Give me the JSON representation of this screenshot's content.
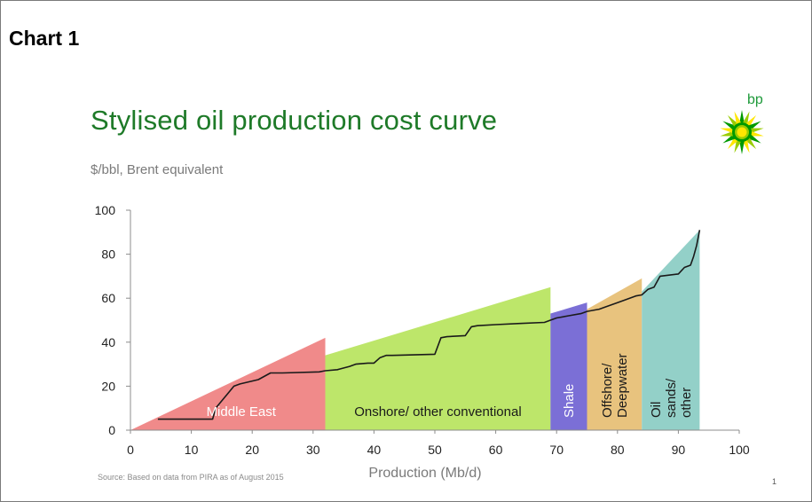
{
  "heading": "Chart 1",
  "logo": {
    "text": "bp",
    "icon": "bp-helios-icon",
    "colors": [
      "#009900",
      "#99cc00",
      "#ffe600"
    ]
  },
  "source": "Source: Based on data from PIRA as of August 2015",
  "page_number": "1",
  "chart_data": {
    "type": "area",
    "title": "Stylised oil production cost curve",
    "subtitle": "$/bbl, Brent equivalent",
    "xlabel": "Production (Mb/d)",
    "ylabel": "",
    "xlim": [
      0,
      100
    ],
    "ylim": [
      0,
      100
    ],
    "xticks": [
      0,
      10,
      20,
      30,
      40,
      50,
      60,
      70,
      80,
      90,
      100
    ],
    "yticks": [
      0,
      20,
      40,
      60,
      80,
      100
    ],
    "grid": false,
    "legend": "none",
    "regions": [
      {
        "name": "Middle East",
        "x_start": 0,
        "x_end": 32,
        "y_start_top": 0,
        "y_end_top": 42,
        "color": "#f08a8a",
        "label_color": "#ffffff",
        "label_orientation": "horizontal"
      },
      {
        "name": "Onshore/ other conventional",
        "x_start": 32,
        "x_end": 69,
        "y_start_top": 34,
        "y_end_top": 65,
        "color": "#bde66a",
        "label_color": "#1a1a1a",
        "label_orientation": "horizontal"
      },
      {
        "name": "Shale",
        "x_start": 69,
        "x_end": 75,
        "y_start_top": 53,
        "y_end_top": 58,
        "color": "#7b6fd6",
        "label_color": "#ffffff",
        "label_orientation": "vertical"
      },
      {
        "name": "Offshore/ Deepwater",
        "x_start": 75,
        "x_end": 84,
        "y_start_top": 55,
        "y_end_top": 69,
        "color": "#e8c37e",
        "label_color": "#1a1a1a",
        "label_orientation": "vertical"
      },
      {
        "name": "Oil sands/ other",
        "x_start": 84,
        "x_end": 93.5,
        "y_start_top": 63,
        "y_end_top": 91,
        "color": "#93d0c8",
        "label_color": "#1a1a1a",
        "label_orientation": "vertical"
      }
    ],
    "cost_curve": {
      "x": [
        4.5,
        13.5,
        14,
        17,
        18,
        21,
        23,
        25,
        31,
        32,
        34,
        36,
        37,
        39,
        40,
        41,
        42,
        43,
        50,
        51,
        52,
        55,
        56,
        57,
        60,
        64,
        68,
        69,
        70,
        72,
        74,
        75,
        77,
        78,
        80,
        81,
        83,
        84,
        85,
        86,
        87,
        90,
        91,
        92,
        92.5,
        93,
        93.5
      ],
      "y": [
        5,
        5,
        10,
        20,
        21,
        23,
        26,
        26,
        26.5,
        27,
        27.5,
        29,
        30,
        30.5,
        30.5,
        33,
        34,
        34,
        34.5,
        42,
        42.5,
        43,
        47,
        47.5,
        48,
        48.5,
        49,
        50,
        51,
        52,
        53,
        54,
        55,
        56,
        58,
        59,
        61,
        61.5,
        64,
        65,
        70,
        71,
        74,
        75,
        79,
        84,
        91
      ]
    }
  }
}
